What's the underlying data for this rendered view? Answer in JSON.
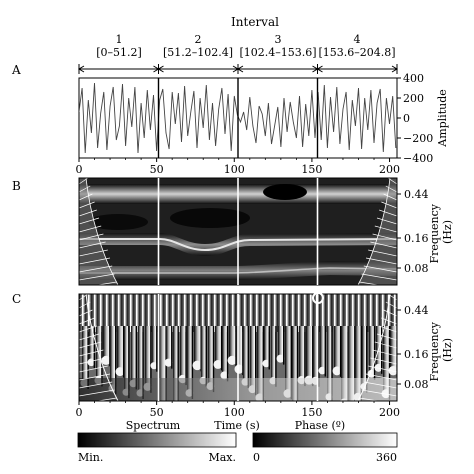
{
  "interval_heading": "Interval",
  "intervals": [
    {
      "number": "1",
      "range": "[0–51.2]",
      "start": 0,
      "end": 51.2
    },
    {
      "number": "2",
      "range": "[51.2–102.4]",
      "start": 51.2,
      "end": 102.4
    },
    {
      "number": "3",
      "range": "[102.4–153.6]",
      "start": 102.4,
      "end": 153.6
    },
    {
      "number": "4",
      "range": "[153.6–204.8]",
      "start": 153.6,
      "end": 204.8
    }
  ],
  "panels": {
    "a": {
      "letter": "A",
      "ylabel": "Amplitude",
      "yticks": [
        "400",
        "200",
        "0",
        "−200",
        "−400"
      ],
      "ytick_values": [
        400,
        200,
        0,
        -200,
        -400
      ],
      "ylim": [
        -400,
        400
      ]
    },
    "b": {
      "letter": "B",
      "ylabel": "Frequency (Hz)",
      "ylabel_lines": [
        "Frequency",
        "(Hz)"
      ],
      "yticks": [
        "0.44",
        "0.16",
        "0.08"
      ],
      "ytick_values": [
        0.44,
        0.16,
        0.08
      ]
    },
    "c": {
      "letter": "C",
      "ylabel": "Frequency (Hz)",
      "ylabel_lines": [
        "Frequency",
        "(Hz)"
      ],
      "yticks": [
        "0.44",
        "0.16",
        "0.08"
      ],
      "ytick_values": [
        0.44,
        0.16,
        0.08
      ]
    }
  },
  "xaxis": {
    "label": "Time (s)",
    "ticks": [
      "0",
      "50",
      "100",
      "150",
      "200"
    ],
    "tick_values": [
      0,
      50,
      100,
      150,
      200
    ],
    "xlim": [
      0,
      204.8
    ]
  },
  "colorbars": {
    "spectrum": {
      "title": "Spectrum",
      "min_label": "Min.",
      "max_label": "Max."
    },
    "phase": {
      "title": "Phase (º)",
      "min_label": "0",
      "max_label": "360"
    }
  },
  "chart_data": [
    {
      "type": "line",
      "panel": "A",
      "description_of_values": "oscillating signal sampled every 2 s",
      "x": [
        0,
        2,
        4,
        6,
        8,
        10,
        12,
        14,
        16,
        18,
        20,
        22,
        24,
        26,
        28,
        30,
        32,
        34,
        36,
        38,
        40,
        42,
        44,
        46,
        48,
        50,
        52,
        54,
        56,
        58,
        60,
        62,
        64,
        66,
        68,
        70,
        72,
        74,
        76,
        78,
        80,
        82,
        84,
        86,
        88,
        90,
        92,
        94,
        96,
        98,
        100,
        102,
        104,
        106,
        108,
        110,
        112,
        114,
        116,
        118,
        120,
        122,
        124,
        126,
        128,
        130,
        132,
        134,
        136,
        138,
        140,
        142,
        144,
        146,
        148,
        150,
        152,
        154,
        156,
        158,
        160,
        162,
        164,
        166,
        168,
        170,
        172,
        174,
        176,
        178,
        180,
        182,
        184,
        186,
        188,
        190,
        192,
        194,
        196,
        198,
        200,
        202,
        204
      ],
      "y": [
        60,
        300,
        -350,
        180,
        -150,
        350,
        -300,
        50,
        260,
        -320,
        120,
        310,
        -220,
        -80,
        340,
        -280,
        200,
        -90,
        310,
        -350,
        150,
        -200,
        280,
        -120,
        230,
        -330,
        180,
        290,
        -150,
        -310,
        260,
        -60,
        250,
        -240,
        320,
        -180,
        60,
        270,
        -300,
        200,
        -100,
        330,
        -220,
        150,
        -280,
        90,
        300,
        -160,
        240,
        -330,
        220,
        30,
        -40,
        60,
        -120,
        210,
        -80,
        -250,
        120,
        40,
        -180,
        150,
        -260,
        -80,
        110,
        -290,
        200,
        -140,
        160,
        -40,
        -200,
        220,
        -290,
        140,
        -180,
        280,
        -200,
        260,
        -220,
        330,
        -300,
        210,
        -140,
        310,
        -260,
        90,
        260,
        -320,
        180,
        -80,
        300,
        -310,
        200,
        -120,
        280,
        -250,
        150,
        290,
        -340,
        200,
        -60,
        220,
        -300
      ],
      "ylim": [
        -400,
        400
      ],
      "xlabel": "Time (s)",
      "ylabel": "Amplitude"
    },
    {
      "type": "heatmap",
      "panel": "B",
      "name": "Spectrum",
      "x": [
        0,
        204.8
      ],
      "y_ticks": [
        0.44,
        0.16,
        0.08
      ],
      "ridge_frequencies_hz": [
        0.44,
        0.16,
        0.08
      ],
      "xlabel": "Time (s)",
      "ylabel": "Frequency (Hz)"
    },
    {
      "type": "heatmap",
      "panel": "C",
      "name": "Phase (º)",
      "x": [
        0,
        204.8
      ],
      "y_ticks": [
        0.44,
        0.16,
        0.08
      ],
      "value_range": [
        0,
        360
      ],
      "xlabel": "Time (s)",
      "ylabel": "Frequency (Hz)"
    }
  ]
}
